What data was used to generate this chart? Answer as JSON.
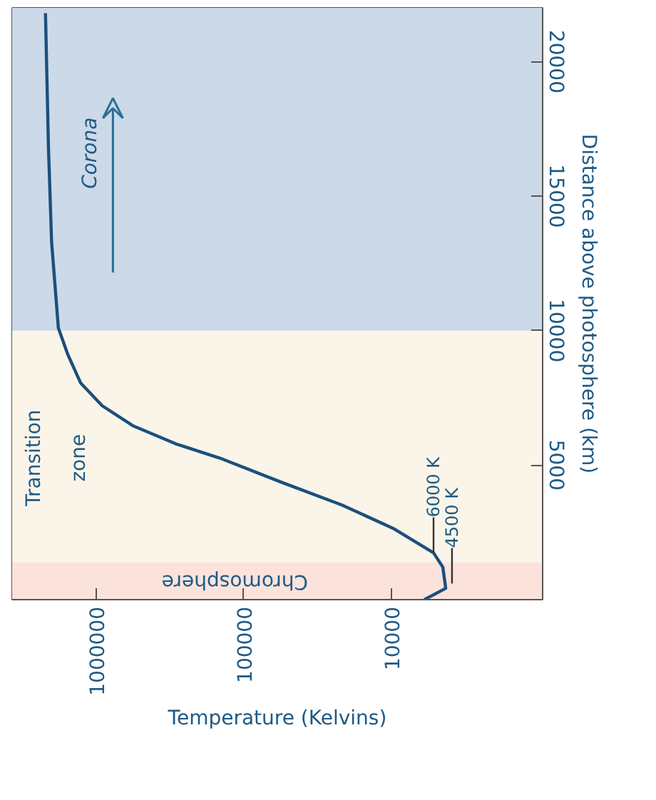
{
  "chart_data": {
    "type": "line",
    "xlabel": "Temperature (Kelvins)",
    "ylabel": "Distance above photosphere (km)",
    "log": "x",
    "xlim": [
      3700000,
      950
    ],
    "xticks": [
      1000000,
      100000,
      10000
    ],
    "ylim": [
      0,
      22000
    ],
    "yticks": [
      5000,
      10000,
      15000,
      20000
    ],
    "grid": false,
    "x": [
      6000,
      4300,
      4500,
      5200,
      9600,
      21700,
      56000,
      145000,
      288000,
      565000,
      910000,
      1270000,
      1550000,
      1800000,
      2000000,
      2100000,
      2200000
    ],
    "series": [
      {
        "color": "#1c4f7c",
        "values": [
          0,
          420,
          1210,
          1740,
          2630,
          3520,
          4370,
          5260,
          5790,
          6470,
          7210,
          8050,
          9100,
          10100,
          13300,
          16800,
          21800
        ]
      }
    ],
    "bands": [
      {
        "axis": "y",
        "from": 0,
        "to": 1400,
        "label": "Chromosphere",
        "color": "#fbe3dc"
      },
      {
        "axis": "y",
        "from": 1400,
        "to": 10000,
        "label": "Transition zone",
        "color": "#fbf5e9"
      },
      {
        "axis": "y",
        "from": 10000,
        "to": 22000,
        "label": "Corona",
        "color": "#cbd9e8"
      }
    ],
    "annotations": [
      {
        "text": "6000 K",
        "x": 5200,
        "y": 1740
      },
      {
        "text": "4500 K",
        "x": 3900,
        "y": 600
      }
    ]
  }
}
